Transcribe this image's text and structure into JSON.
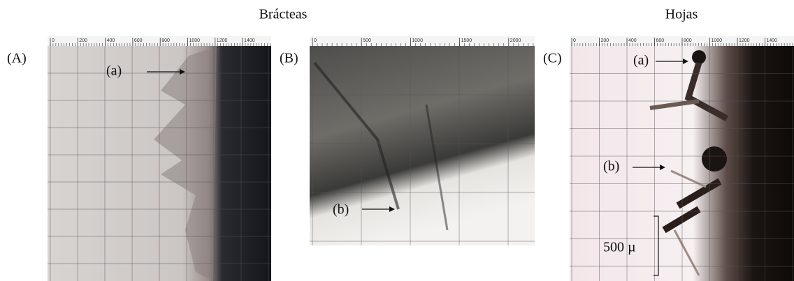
{
  "headers": {
    "left": "Brácteas",
    "right": "Hojas"
  },
  "panels": [
    {
      "label": "(A)",
      "ruler": [
        0,
        200,
        400,
        600,
        800,
        1000,
        1200,
        1400
      ],
      "annotations": [
        "(a)"
      ]
    },
    {
      "label": "(B)",
      "ruler": [
        0,
        500,
        1000,
        1500,
        2000
      ],
      "annotations": [
        "(b)"
      ]
    },
    {
      "label": "(C)",
      "ruler": [
        0,
        200,
        400,
        600,
        800,
        1000,
        1200,
        1400
      ],
      "annotations": [
        "(a)",
        "(b)"
      ]
    }
  ],
  "scale_bar": "500 µ"
}
